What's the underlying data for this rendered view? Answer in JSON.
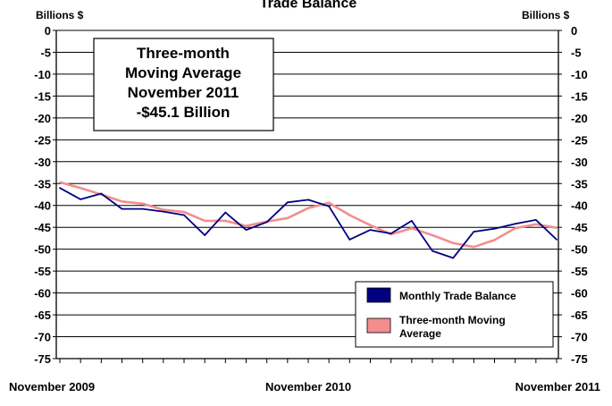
{
  "chart_data": {
    "type": "line",
    "title": "Trade Balance",
    "y_unit_left": "Billions $",
    "y_unit_right": "Billions $",
    "ylim": [
      -75,
      0
    ],
    "y_ticks": [
      0,
      -5,
      -10,
      -15,
      -20,
      -25,
      -30,
      -35,
      -40,
      -45,
      -50,
      -55,
      -60,
      -65,
      -70,
      -75
    ],
    "y_tick_labels": [
      "0",
      "-5",
      "-10",
      "-15",
      "-20",
      "-25",
      "-30",
      "-35",
      "-40",
      "-45",
      "-50",
      "-55",
      "-60",
      "-65",
      "-70",
      "-75"
    ],
    "x_tick_labels": [
      "November 2009",
      "November 2010",
      "November 2011"
    ],
    "x": [
      "Nov 2009",
      "Dec 2009",
      "Jan 2010",
      "Feb 2010",
      "Mar 2010",
      "Apr 2010",
      "May 2010",
      "Jun 2010",
      "Jul 2010",
      "Aug 2010",
      "Sep 2010",
      "Oct 2010",
      "Nov 2010",
      "Dec 2010",
      "Jan 2011",
      "Feb 2011",
      "Mar 2011",
      "Apr 2011",
      "May 2011",
      "Jun 2011",
      "Jul 2011",
      "Aug 2011",
      "Sep 2011",
      "Oct 2011",
      "Nov 2011"
    ],
    "series": [
      {
        "name": "Monthly Trade Balance",
        "color": "#000080",
        "values": [
          -36.0,
          -38.6,
          -37.3,
          -40.8,
          -40.8,
          -41.4,
          -42.2,
          -46.8,
          -41.6,
          -45.6,
          -43.8,
          -39.3,
          -38.7,
          -40.2,
          -47.8,
          -45.6,
          -46.4,
          -43.5,
          -50.4,
          -52.0,
          -46.0,
          -45.3,
          -44.2,
          -43.3,
          -47.8
        ]
      },
      {
        "name": "Three-month Moving Average",
        "color": "#f28e8e",
        "values": [
          -34.7,
          -36.0,
          -37.5,
          -39.1,
          -39.6,
          -41.0,
          -41.5,
          -43.5,
          -43.5,
          -44.7,
          -43.7,
          -42.9,
          -40.6,
          -39.4,
          -42.2,
          -44.5,
          -46.6,
          -45.2,
          -46.8,
          -48.6,
          -49.5,
          -47.9,
          -45.2,
          -44.3,
          -45.1
        ]
      }
    ],
    "legend": "bottom-right",
    "grid": true,
    "annotation": {
      "lines": [
        "Three-month",
        "Moving Average",
        "November 2011",
        "-$45.1 Billion"
      ]
    }
  }
}
